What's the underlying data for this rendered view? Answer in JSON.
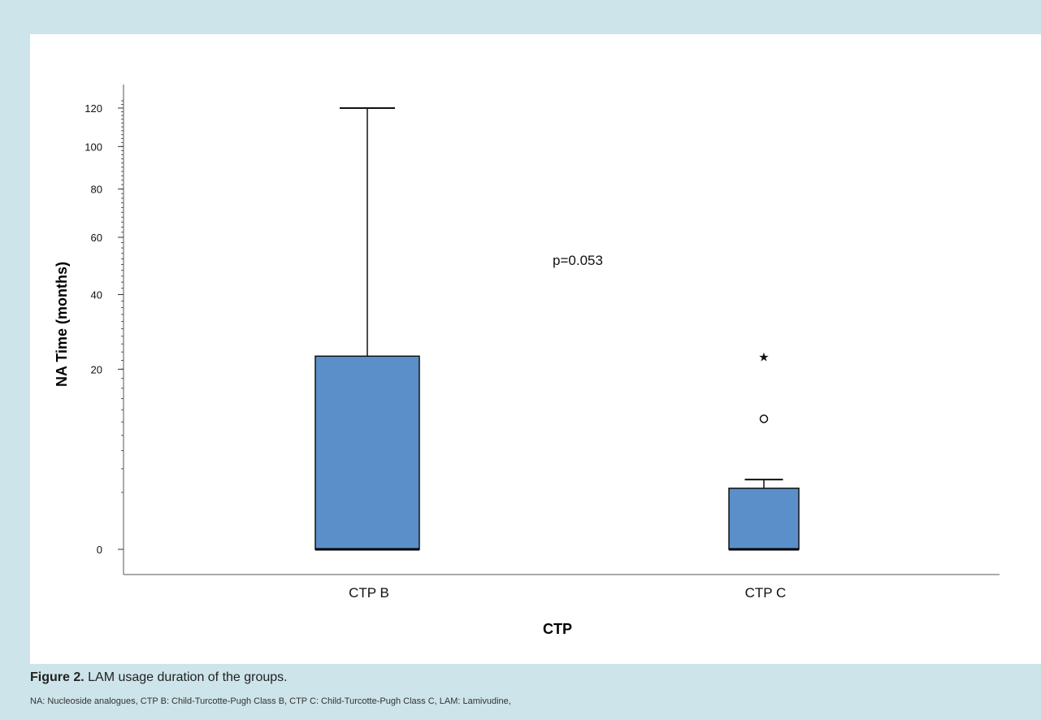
{
  "caption": {
    "label": "Figure 2.",
    "text": " LAM usage duration of the groups."
  },
  "footnote": "NA: Nucleoside analogues, CTP B: Child-Turcotte-Pugh Class B, CTP C: Child-Turcotte-Pugh Class C, LAM: Lamivudine,",
  "colors": {
    "page_background": "#cde4ea",
    "panel_background": "#ffffff",
    "box_fill": "#5b8fc9"
  },
  "chart_data": {
    "type": "boxplot",
    "xlabel": "CTP",
    "ylabel": "NA Time (months)",
    "y_scale": "square-root",
    "yticks": [
      0,
      20,
      40,
      60,
      80,
      100,
      120
    ],
    "ylim": [
      0,
      120
    ],
    "annotation": "p=0.053",
    "grid": false,
    "legend": "none",
    "categories": [
      "CTP B",
      "CTP C"
    ],
    "boxes": [
      {
        "category": "CTP B",
        "min": 0,
        "q1": 0,
        "median": 0,
        "q3": 23,
        "max": 120,
        "outliers": [],
        "extremes": []
      },
      {
        "category": "CTP C",
        "min": 0,
        "q1": 0,
        "median": 0,
        "q3": 2.3,
        "max": 3,
        "outliers": [
          10.5
        ],
        "extremes": [
          23
        ]
      }
    ]
  }
}
